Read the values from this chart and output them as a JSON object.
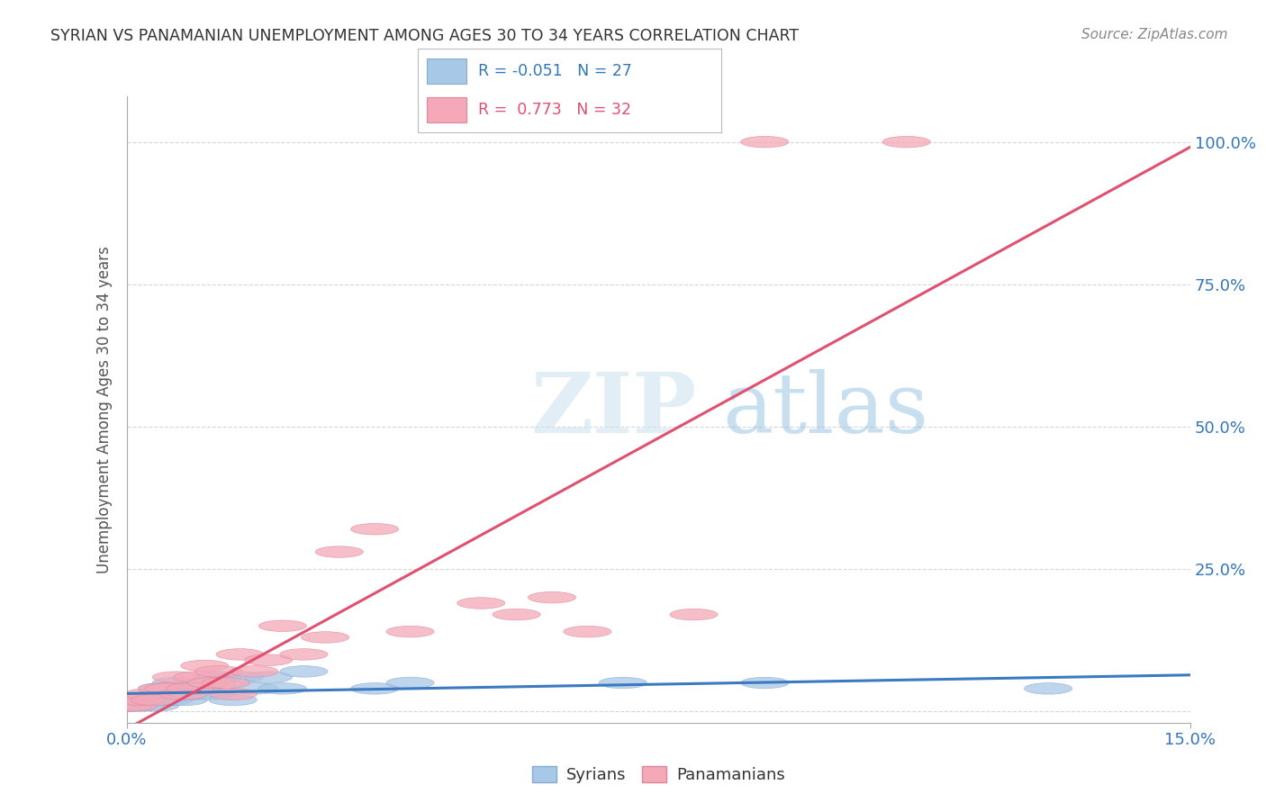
{
  "title": "SYRIAN VS PANAMANIAN UNEMPLOYMENT AMONG AGES 30 TO 34 YEARS CORRELATION CHART",
  "source": "Source: ZipAtlas.com",
  "ylabel": "Unemployment Among Ages 30 to 34 years",
  "xlim": [
    0.0,
    0.15
  ],
  "ylim": [
    -0.02,
    1.08
  ],
  "yticks": [
    0.0,
    0.25,
    0.5,
    0.75,
    1.0
  ],
  "ytick_labels": [
    "",
    "25.0%",
    "50.0%",
    "75.0%",
    "100.0%"
  ],
  "xticks": [
    0.0,
    0.15
  ],
  "xtick_labels": [
    "0.0%",
    "15.0%"
  ],
  "syrian_color": "#a8c8e8",
  "panamanian_color": "#f4a8b8",
  "syrian_edge_color": "#88aacc",
  "panamanian_edge_color": "#dd8898",
  "syrian_line_color": "#3a7abf",
  "panamanian_line_color": "#e05070",
  "legend_r_syrian": "-0.051",
  "legend_n_syrian": "27",
  "legend_r_panamanian": "0.773",
  "legend_n_panamanian": "32",
  "background_color": "#ffffff",
  "grid_color": "#cccccc",
  "title_color": "#333333",
  "watermark_zip": "ZIP",
  "watermark_atlas": "atlas",
  "syrians_x": [
    0.0,
    0.001,
    0.002,
    0.003,
    0.004,
    0.005,
    0.005,
    0.006,
    0.007,
    0.007,
    0.008,
    0.009,
    0.01,
    0.011,
    0.012,
    0.013,
    0.015,
    0.016,
    0.018,
    0.02,
    0.022,
    0.025,
    0.035,
    0.04,
    0.07,
    0.09,
    0.13
  ],
  "syrians_y": [
    0.01,
    0.01,
    0.01,
    0.02,
    0.01,
    0.02,
    0.04,
    0.02,
    0.05,
    0.03,
    0.02,
    0.03,
    0.04,
    0.05,
    0.03,
    0.06,
    0.02,
    0.06,
    0.04,
    0.06,
    0.04,
    0.07,
    0.04,
    0.05,
    0.05,
    0.05,
    0.04
  ],
  "panamanians_x": [
    0.0,
    0.001,
    0.002,
    0.003,
    0.004,
    0.005,
    0.006,
    0.007,
    0.008,
    0.009,
    0.01,
    0.011,
    0.012,
    0.013,
    0.014,
    0.015,
    0.016,
    0.018,
    0.02,
    0.022,
    0.025,
    0.028,
    0.03,
    0.035,
    0.04,
    0.05,
    0.055,
    0.06,
    0.065,
    0.08,
    0.09,
    0.11
  ],
  "panamanians_y": [
    0.01,
    0.01,
    0.02,
    0.03,
    0.02,
    0.04,
    0.04,
    0.06,
    0.03,
    0.04,
    0.06,
    0.08,
    0.05,
    0.07,
    0.05,
    0.03,
    0.1,
    0.07,
    0.09,
    0.15,
    0.1,
    0.13,
    0.28,
    0.32,
    0.14,
    0.19,
    0.17,
    0.2,
    0.14,
    0.17,
    1.0,
    1.0
  ],
  "syrian_line_slope": -0.05,
  "syrian_line_intercept": 0.038,
  "panamanian_line_slope": 7.2,
  "panamanian_line_intercept": -0.02
}
